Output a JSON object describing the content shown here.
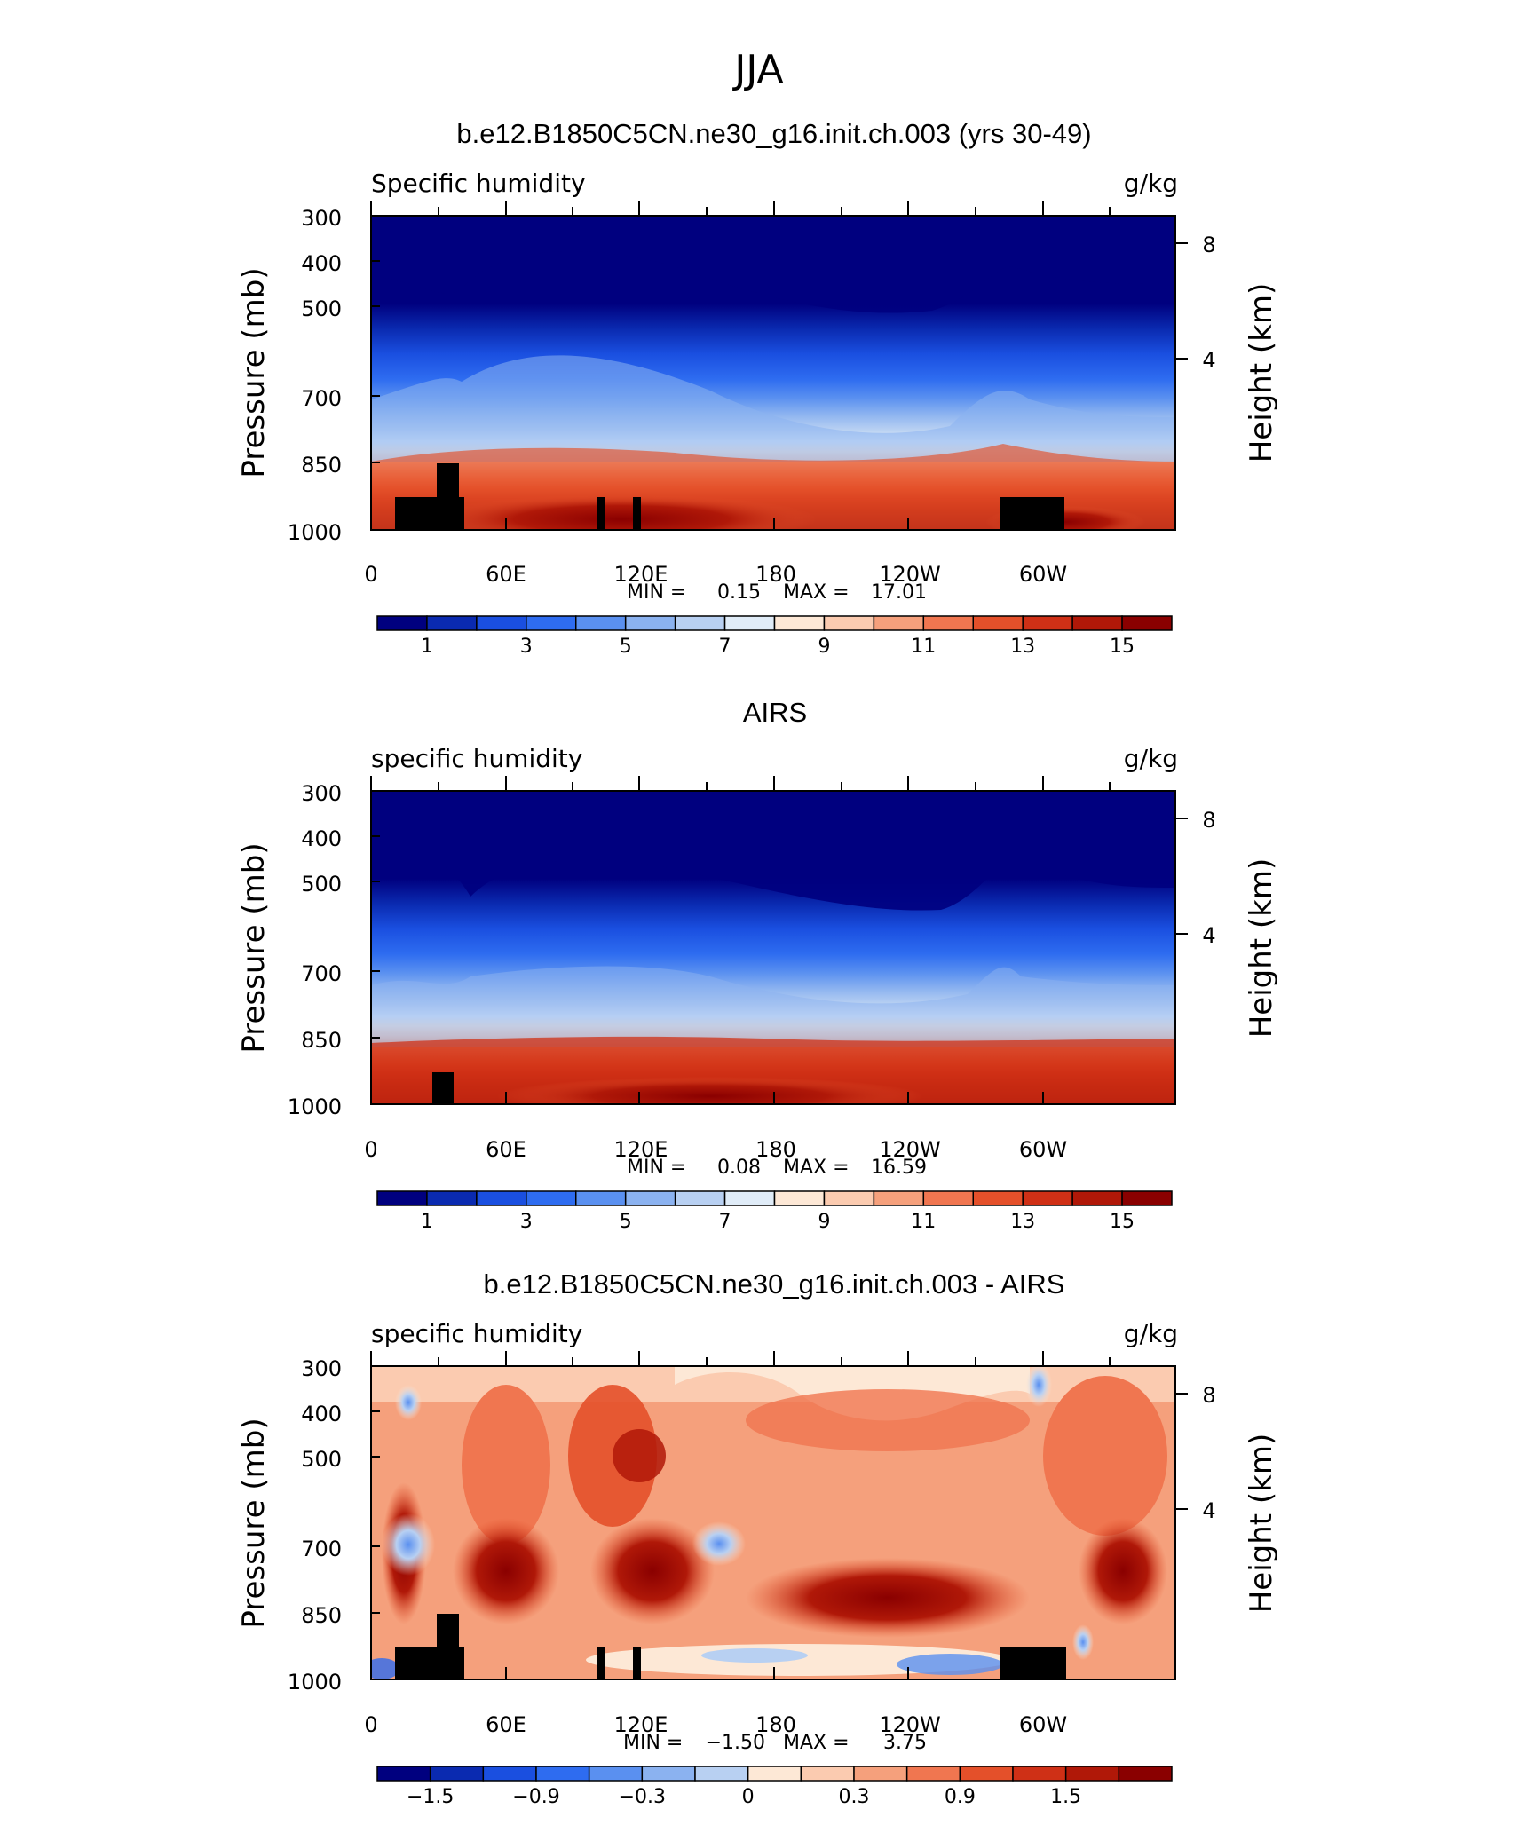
{
  "page": {
    "main_title": "JJA",
    "stat_min_label": "MIN =",
    "stat_max_label": "MAX ="
  },
  "chart_data": [
    {
      "type": "heatmap",
      "title": "b.e12.B1850C5CN.ne30_g16.init.ch.003 (yrs 30-49)",
      "left_label": "Specific humidity",
      "right_label": "g/kg",
      "ylabel": "Pressure (mb)",
      "ylabel_right": "Height (km)",
      "yticks": [
        "300",
        "400",
        "500",
        "700",
        "850",
        "1000"
      ],
      "yticks_right": [
        "8",
        "4"
      ],
      "xticks": [
        "0",
        "60E",
        "120E",
        "180",
        "120W",
        "60W"
      ],
      "stat_min": "0.15",
      "stat_max": "17.01",
      "colorbar_labels": [
        "1",
        "3",
        "5",
        "7",
        "9",
        "11",
        "13",
        "15"
      ],
      "colorbar_colors": [
        "#00007f",
        "#0a2ab0",
        "#1a4fe0",
        "#2e6cf0",
        "#5a90f0",
        "#8bb2f0",
        "#b8d0f2",
        "#e0ecf8",
        "#fde8d6",
        "#fbcbb0",
        "#f5a07c",
        "#f07650",
        "#e4502a",
        "#cf3016",
        "#b01808",
        "#8a0000"
      ]
    },
    {
      "type": "heatmap",
      "title": "AIRS",
      "left_label": "specific humidity",
      "right_label": "g/kg",
      "ylabel": "Pressure (mb)",
      "ylabel_right": "Height (km)",
      "yticks": [
        "300",
        "400",
        "500",
        "700",
        "850",
        "1000"
      ],
      "yticks_right": [
        "8",
        "4"
      ],
      "xticks": [
        "0",
        "60E",
        "120E",
        "180",
        "120W",
        "60W"
      ],
      "stat_min": "0.08",
      "stat_max": "16.59",
      "colorbar_labels": [
        "1",
        "3",
        "5",
        "7",
        "9",
        "11",
        "13",
        "15"
      ],
      "colorbar_colors": [
        "#00007f",
        "#0a2ab0",
        "#1a4fe0",
        "#2e6cf0",
        "#5a90f0",
        "#8bb2f0",
        "#b8d0f2",
        "#e0ecf8",
        "#fde8d6",
        "#fbcbb0",
        "#f5a07c",
        "#f07650",
        "#e4502a",
        "#cf3016",
        "#b01808",
        "#8a0000"
      ]
    },
    {
      "type": "heatmap",
      "title": "b.e12.B1850C5CN.ne30_g16.init.ch.003 - AIRS",
      "left_label": "specific humidity",
      "right_label": "g/kg",
      "ylabel": "Pressure (mb)",
      "ylabel_right": "Height (km)",
      "yticks": [
        "300",
        "400",
        "500",
        "700",
        "850",
        "1000"
      ],
      "yticks_right": [
        "8",
        "4"
      ],
      "xticks": [
        "0",
        "60E",
        "120E",
        "180",
        "120W",
        "60W"
      ],
      "stat_min": "−1.50",
      "stat_max": "3.75",
      "colorbar_labels": [
        "−1.5",
        "−0.9",
        "−0.3",
        "0",
        "0.3",
        "0.9",
        "1.5"
      ],
      "colorbar_colors": [
        "#00007f",
        "#0a2ab0",
        "#1a4fe0",
        "#2e6cf0",
        "#5a90f0",
        "#8bb2f0",
        "#b8d0f2",
        "#fde8d6",
        "#fbcbb0",
        "#f5a07c",
        "#f07650",
        "#e4502a",
        "#cf3016",
        "#b01808",
        "#8a0000"
      ]
    }
  ]
}
